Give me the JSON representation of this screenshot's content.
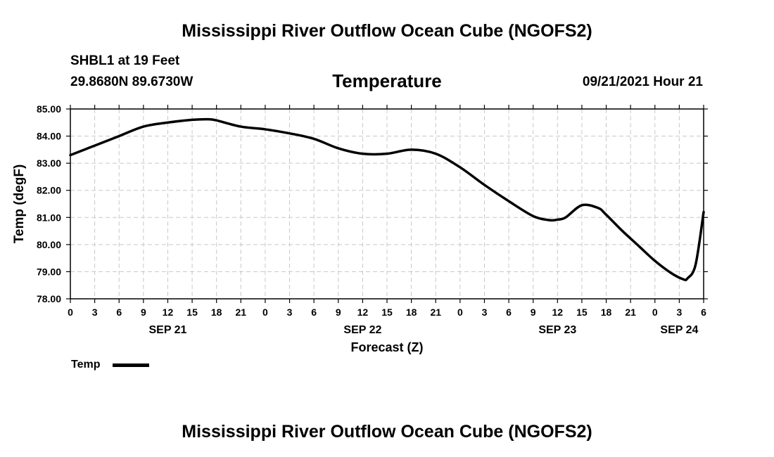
{
  "header": {
    "title": "Mississippi River Outflow Ocean Cube (NGOFS2)",
    "station": "SHBL1 at 19 Feet",
    "coords": "29.8680N  89.6730W",
    "variable": "Temperature",
    "datetime": "09/21/2021 Hour 21"
  },
  "footer": {
    "title": "Mississippi River Outflow Ocean Cube (NGOFS2)"
  },
  "legend": {
    "label": "Temp"
  },
  "chart_data": {
    "type": "line",
    "title": "Temperature",
    "xlabel": "Forecast (Z)",
    "ylabel": "Temp (degF)",
    "ylim": [
      78,
      85
    ],
    "xlim": [
      0,
      78
    ],
    "y_ticks": [
      "78.00",
      "79.00",
      "80.00",
      "81.00",
      "82.00",
      "83.00",
      "84.00",
      "85.00"
    ],
    "x_tick_values": [
      0,
      3,
      6,
      9,
      12,
      15,
      18,
      21,
      24,
      27,
      30,
      33,
      36,
      39,
      42,
      45,
      48,
      51,
      54,
      57,
      60,
      63,
      66,
      69,
      72,
      75,
      78
    ],
    "x_tick_labels": [
      "0",
      "3",
      "6",
      "9",
      "12",
      "15",
      "18",
      "21",
      "0",
      "3",
      "6",
      "9",
      "12",
      "15",
      "18",
      "21",
      "0",
      "3",
      "6",
      "9",
      "12",
      "15",
      "18",
      "21",
      "0",
      "3",
      "6"
    ],
    "date_labels": [
      {
        "label": "SEP 21",
        "x": 12
      },
      {
        "label": "SEP 22",
        "x": 36
      },
      {
        "label": "SEP 23",
        "x": 60
      },
      {
        "label": "SEP 24",
        "x": 75
      }
    ],
    "grid": true,
    "series": [
      {
        "name": "Temp",
        "x": [
          0,
          3,
          6,
          9,
          12,
          15,
          17,
          18,
          21,
          24,
          27,
          30,
          33,
          36,
          39,
          42,
          45,
          48,
          51,
          54,
          57,
          59,
          60,
          61,
          63,
          65,
          66,
          68,
          70,
          72,
          74,
          75.5,
          76,
          77,
          78
        ],
        "values": [
          83.3,
          83.65,
          84.0,
          84.35,
          84.5,
          84.6,
          84.62,
          84.58,
          84.35,
          84.25,
          84.1,
          83.9,
          83.55,
          83.35,
          83.35,
          83.5,
          83.35,
          82.85,
          82.2,
          81.6,
          81.05,
          80.9,
          80.92,
          81.0,
          81.45,
          81.35,
          81.1,
          80.5,
          79.95,
          79.4,
          78.95,
          78.72,
          78.75,
          79.25,
          81.2
        ]
      }
    ]
  }
}
